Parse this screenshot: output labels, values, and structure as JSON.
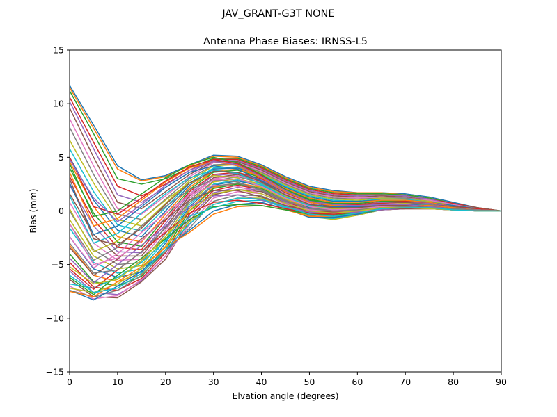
{
  "figure": {
    "suptitle": "JAV_GRANT-G3T   NONE"
  },
  "chart_data": {
    "type": "line",
    "title": "Antenna Phase Biases: IRNSS-L5",
    "xlabel": "Elvation angle (degrees)",
    "ylabel": "Bias (mm)",
    "xlim": [
      0,
      90
    ],
    "ylim": [
      -15,
      15
    ],
    "xticks": [
      "0",
      "10",
      "20",
      "30",
      "40",
      "50",
      "60",
      "70",
      "80",
      "90"
    ],
    "yticks": [
      "−15",
      "−10",
      "−5",
      "0",
      "5",
      "10",
      "15"
    ],
    "grid": false,
    "legend": "none",
    "colors": [
      "#1f77b4",
      "#ff7f0e",
      "#2ca02c",
      "#d62728",
      "#9467bd",
      "#8c564b",
      "#e377c2",
      "#7f7f7f",
      "#bcbd22",
      "#17becf"
    ],
    "x": [
      0,
      5,
      10,
      15,
      20,
      25,
      30,
      35,
      40,
      45,
      50,
      55,
      60,
      65,
      70,
      75,
      80,
      85,
      90
    ],
    "series": [
      {
        "values": [
          11.7,
          8.0,
          4.2,
          2.9,
          3.3,
          4.3,
          5.2,
          5.1,
          4.3,
          3.2,
          2.3,
          1.9,
          1.7,
          1.7,
          1.6,
          1.3,
          0.8,
          0.3,
          0.0
        ]
      },
      {
        "values": [
          11.5,
          7.7,
          3.9,
          2.8,
          3.2,
          4.2,
          5.1,
          5.0,
          4.2,
          3.1,
          2.2,
          1.8,
          1.7,
          1.7,
          1.5,
          1.2,
          0.7,
          0.3,
          0.0
        ]
      },
      {
        "values": [
          11.2,
          7.2,
          3.0,
          2.5,
          3.0,
          4.0,
          4.9,
          4.9,
          4.1,
          3.0,
          2.1,
          1.7,
          1.6,
          1.6,
          1.5,
          1.2,
          0.7,
          0.3,
          0.0
        ]
      },
      {
        "values": [
          10.6,
          6.4,
          2.3,
          1.4,
          2.5,
          3.8,
          4.8,
          4.8,
          4.0,
          2.9,
          2.0,
          1.6,
          1.5,
          1.5,
          1.4,
          1.1,
          0.7,
          0.3,
          0.0
        ]
      },
      {
        "values": [
          10.2,
          5.8,
          1.5,
          0.8,
          2.2,
          3.6,
          4.7,
          4.7,
          3.9,
          2.8,
          1.9,
          1.5,
          1.4,
          1.5,
          1.4,
          1.1,
          0.6,
          0.3,
          0.0
        ]
      },
      {
        "values": [
          9.6,
          5.0,
          0.8,
          0.2,
          1.8,
          3.4,
          4.6,
          4.6,
          3.8,
          2.7,
          1.8,
          1.4,
          1.3,
          1.4,
          1.3,
          1.0,
          0.6,
          0.3,
          0.0
        ]
      },
      {
        "values": [
          8.6,
          4.2,
          0.2,
          -0.3,
          1.4,
          3.2,
          4.5,
          4.5,
          3.7,
          2.6,
          1.7,
          1.3,
          1.2,
          1.3,
          1.2,
          1.0,
          0.6,
          0.2,
          0.0
        ]
      },
      {
        "values": [
          7.8,
          3.4,
          -0.3,
          -0.8,
          1.1,
          3.0,
          4.3,
          4.4,
          3.6,
          2.5,
          1.6,
          1.2,
          1.1,
          1.2,
          1.2,
          0.9,
          0.5,
          0.2,
          0.0
        ]
      },
      {
        "values": [
          6.6,
          2.6,
          -0.8,
          -1.4,
          0.7,
          2.8,
          4.2,
          4.3,
          3.5,
          2.4,
          1.5,
          1.1,
          1.0,
          1.2,
          1.1,
          0.9,
          0.5,
          0.2,
          0.0
        ]
      },
      {
        "values": [
          5.8,
          1.8,
          -1.3,
          -1.9,
          0.3,
          2.6,
          4.0,
          4.1,
          3.4,
          2.3,
          1.4,
          1.0,
          0.9,
          1.1,
          1.1,
          0.8,
          0.5,
          0.2,
          0.0
        ]
      },
      {
        "values": [
          5.0,
          1.0,
          -1.8,
          -2.4,
          0.0,
          2.4,
          3.9,
          4.0,
          3.3,
          2.2,
          1.3,
          0.9,
          0.9,
          1.0,
          1.0,
          0.8,
          0.5,
          0.2,
          0.0
        ]
      },
      {
        "values": [
          4.6,
          0.4,
          -2.4,
          -2.9,
          -0.3,
          2.2,
          3.7,
          3.9,
          3.2,
          2.1,
          1.2,
          0.8,
          0.8,
          1.0,
          1.0,
          0.8,
          0.4,
          0.2,
          0.0
        ]
      },
      {
        "values": [
          4.0,
          -0.2,
          -2.9,
          -3.3,
          -0.6,
          2.0,
          3.6,
          3.8,
          3.1,
          2.0,
          1.1,
          0.7,
          0.7,
          0.9,
          0.9,
          0.7,
          0.4,
          0.2,
          0.0
        ]
      },
      {
        "values": [
          3.2,
          -0.8,
          -3.4,
          -3.6,
          -0.9,
          1.8,
          3.4,
          3.6,
          3.0,
          1.9,
          1.0,
          0.6,
          0.6,
          0.8,
          0.9,
          0.7,
          0.4,
          0.2,
          0.0
        ]
      },
      {
        "values": [
          2.4,
          -1.4,
          -3.8,
          -3.9,
          -1.2,
          1.6,
          3.3,
          3.5,
          2.9,
          1.8,
          0.9,
          0.5,
          0.5,
          0.8,
          0.8,
          0.7,
          0.4,
          0.1,
          0.0
        ]
      },
      {
        "values": [
          1.6,
          -2.2,
          -4.2,
          -4.2,
          -1.5,
          1.4,
          3.1,
          3.4,
          2.8,
          1.7,
          0.8,
          0.4,
          0.5,
          0.7,
          0.8,
          0.6,
          0.4,
          0.1,
          0.0
        ]
      },
      {
        "values": [
          0.8,
          -3.0,
          -4.6,
          -4.5,
          -1.8,
          1.2,
          3.0,
          3.3,
          2.7,
          1.6,
          0.7,
          0.3,
          0.4,
          0.7,
          0.7,
          0.6,
          0.3,
          0.1,
          0.0
        ]
      },
      {
        "values": [
          0.0,
          -3.6,
          -5.0,
          -4.8,
          -2.1,
          1.0,
          2.8,
          3.2,
          2.6,
          1.5,
          0.6,
          0.3,
          0.3,
          0.6,
          0.7,
          0.6,
          0.3,
          0.1,
          0.0
        ]
      },
      {
        "values": [
          -0.8,
          -4.2,
          -5.4,
          -5.1,
          -2.4,
          0.8,
          2.7,
          3.0,
          2.5,
          1.4,
          0.5,
          0.2,
          0.3,
          0.6,
          0.7,
          0.5,
          0.3,
          0.1,
          0.0
        ]
      },
      {
        "values": [
          -1.6,
          -4.8,
          -5.8,
          -5.4,
          -2.7,
          0.6,
          2.5,
          2.9,
          2.4,
          1.3,
          0.4,
          0.1,
          0.2,
          0.5,
          0.6,
          0.5,
          0.3,
          0.1,
          0.0
        ]
      },
      {
        "values": [
          -2.4,
          -5.4,
          -6.2,
          -5.7,
          -3.0,
          0.4,
          2.4,
          2.8,
          2.3,
          1.2,
          0.3,
          0.0,
          0.1,
          0.5,
          0.6,
          0.5,
          0.3,
          0.1,
          0.0
        ]
      },
      {
        "values": [
          -3.2,
          -6.0,
          -6.6,
          -5.9,
          -3.3,
          0.2,
          2.2,
          2.6,
          2.2,
          1.1,
          0.2,
          -0.1,
          0.1,
          0.4,
          0.5,
          0.5,
          0.3,
          0.1,
          0.0
        ]
      },
      {
        "values": [
          -4.0,
          -6.6,
          -7.0,
          -6.1,
          -3.6,
          0.0,
          2.1,
          2.5,
          2.1,
          1.0,
          0.1,
          -0.2,
          0.0,
          0.4,
          0.5,
          0.4,
          0.2,
          0.1,
          0.0
        ]
      },
      {
        "values": [
          -4.8,
          -7.1,
          -7.4,
          -6.3,
          -3.9,
          -0.3,
          1.9,
          2.4,
          2.0,
          0.9,
          0.0,
          -0.3,
          -0.1,
          0.3,
          0.5,
          0.4,
          0.2,
          0.1,
          0.0
        ]
      },
      {
        "values": [
          -5.6,
          -7.6,
          -7.8,
          -6.5,
          -4.2,
          -0.6,
          1.7,
          2.2,
          1.9,
          0.8,
          -0.1,
          -0.4,
          -0.2,
          0.3,
          0.4,
          0.4,
          0.2,
          0.1,
          0.0
        ]
      },
      {
        "values": [
          -6.4,
          -8.0,
          -8.1,
          -6.6,
          -4.5,
          -0.9,
          1.5,
          2.0,
          1.8,
          0.7,
          -0.2,
          -0.5,
          -0.3,
          0.2,
          0.4,
          0.4,
          0.2,
          0.1,
          0.0
        ]
      },
      {
        "values": [
          -7.0,
          -8.2,
          -7.9,
          -6.4,
          -4.2,
          -1.3,
          1.2,
          1.8,
          1.6,
          0.6,
          -0.3,
          -0.6,
          -0.3,
          0.2,
          0.4,
          0.4,
          0.2,
          0.1,
          0.0
        ]
      },
      {
        "values": [
          -7.4,
          -8.0,
          -7.4,
          -6.0,
          -3.8,
          -1.6,
          0.9,
          1.5,
          1.4,
          0.5,
          -0.4,
          -0.7,
          -0.4,
          0.1,
          0.3,
          0.3,
          0.2,
          0.1,
          0.0
        ]
      },
      {
        "values": [
          -7.2,
          -7.6,
          -6.8,
          -5.4,
          -3.3,
          -1.0,
          0.6,
          1.2,
          1.2,
          0.4,
          -0.5,
          -0.8,
          -0.4,
          0.1,
          0.3,
          0.3,
          0.2,
          0.1,
          0.0
        ]
      },
      {
        "values": [
          -6.8,
          -7.2,
          -6.2,
          -4.8,
          -2.8,
          -0.5,
          0.3,
          0.9,
          1.0,
          0.3,
          -0.6,
          -0.7,
          -0.3,
          0.1,
          0.3,
          0.3,
          0.2,
          0.1,
          0.0
        ]
      },
      {
        "values": [
          -7.4,
          -8.3,
          -7.0,
          -5.6,
          -3.6,
          -1.8,
          0.0,
          0.6,
          0.8,
          0.2,
          -0.6,
          -0.6,
          -0.3,
          0.1,
          0.3,
          0.3,
          0.1,
          0.0,
          0.0
        ]
      },
      {
        "values": [
          -7.5,
          -8.0,
          -6.6,
          -5.2,
          -3.4,
          -2.0,
          -0.3,
          0.4,
          0.5,
          0.1,
          -0.5,
          -0.5,
          -0.2,
          0.1,
          0.2,
          0.2,
          0.1,
          0.0,
          0.0
        ]
      },
      {
        "values": [
          -6.2,
          -7.8,
          -6.0,
          -4.4,
          -2.6,
          -0.8,
          0.4,
          0.6,
          0.5,
          0.1,
          -0.3,
          -0.4,
          -0.2,
          0.1,
          0.2,
          0.2,
          0.1,
          0.0,
          0.0
        ]
      },
      {
        "values": [
          -5.4,
          -7.3,
          -5.5,
          -3.8,
          -2.0,
          -0.2,
          0.8,
          1.0,
          0.7,
          0.2,
          -0.2,
          -0.3,
          -0.1,
          0.1,
          0.2,
          0.2,
          0.1,
          0.0,
          0.0
        ]
      },
      {
        "values": [
          -4.4,
          -6.7,
          -5.0,
          -3.2,
          -1.4,
          0.4,
          1.4,
          1.5,
          1.0,
          0.4,
          -0.1,
          -0.2,
          -0.1,
          0.1,
          0.2,
          0.2,
          0.1,
          0.0,
          0.0
        ]
      },
      {
        "values": [
          -3.4,
          -6.0,
          -4.5,
          -2.6,
          -0.8,
          1.0,
          1.9,
          1.9,
          1.3,
          0.5,
          0.0,
          -0.1,
          0.0,
          0.2,
          0.2,
          0.2,
          0.1,
          0.0,
          0.0
        ]
      },
      {
        "values": [
          -2.4,
          -5.3,
          -4.0,
          -2.0,
          -0.2,
          1.5,
          2.4,
          2.3,
          1.6,
          0.7,
          0.1,
          0.0,
          0.0,
          0.2,
          0.3,
          0.2,
          0.1,
          0.0,
          0.0
        ]
      },
      {
        "values": [
          -1.2,
          -4.6,
          -3.4,
          -1.4,
          0.4,
          2.0,
          2.9,
          2.7,
          1.9,
          0.9,
          0.2,
          0.1,
          0.1,
          0.2,
          0.3,
          0.2,
          0.1,
          0.0,
          0.0
        ]
      },
      {
        "values": [
          0.2,
          -3.8,
          -2.8,
          -0.8,
          1.0,
          2.6,
          3.3,
          3.1,
          2.2,
          1.1,
          0.4,
          0.2,
          0.2,
          0.3,
          0.3,
          0.2,
          0.1,
          0.0,
          0.0
        ]
      },
      {
        "values": [
          1.4,
          -3.0,
          -2.1,
          -0.2,
          1.6,
          3.1,
          3.8,
          3.5,
          2.5,
          1.3,
          0.5,
          0.3,
          0.3,
          0.4,
          0.4,
          0.3,
          0.1,
          0.0,
          0.0
        ]
      },
      {
        "values": [
          2.6,
          -2.2,
          -1.4,
          0.4,
          2.2,
          3.6,
          4.2,
          3.9,
          2.8,
          1.5,
          0.6,
          0.4,
          0.4,
          0.5,
          0.5,
          0.3,
          0.2,
          0.1,
          0.0
        ]
      },
      {
        "values": [
          3.6,
          -1.4,
          -0.7,
          1.0,
          2.7,
          4.0,
          4.6,
          4.2,
          3.1,
          1.8,
          0.8,
          0.5,
          0.5,
          0.6,
          0.5,
          0.4,
          0.2,
          0.1,
          0.0
        ]
      },
      {
        "values": [
          4.4,
          -0.5,
          0.0,
          1.6,
          3.1,
          4.3,
          5.0,
          4.5,
          3.4,
          2.0,
          1.0,
          0.7,
          0.6,
          0.7,
          0.6,
          0.4,
          0.2,
          0.1,
          0.0
        ]
      },
      {
        "values": [
          5.0,
          0.4,
          -0.3,
          1.2,
          2.8,
          4.1,
          4.8,
          4.4,
          3.3,
          1.9,
          0.9,
          0.6,
          0.6,
          0.7,
          0.6,
          0.4,
          0.2,
          0.1,
          0.0
        ]
      },
      {
        "values": [
          4.8,
          1.2,
          -1.0,
          0.6,
          2.4,
          3.8,
          4.6,
          4.3,
          3.2,
          1.9,
          0.9,
          0.6,
          0.5,
          0.6,
          0.6,
          0.4,
          0.2,
          0.1,
          0.0
        ]
      },
      {
        "values": [
          3.0,
          -2.6,
          -3.2,
          -1.6,
          0.6,
          2.6,
          3.7,
          3.6,
          2.7,
          1.5,
          0.6,
          0.3,
          0.3,
          0.5,
          0.5,
          0.3,
          0.2,
          0.1,
          0.0
        ]
      },
      {
        "values": [
          -1.2,
          -5.0,
          -4.4,
          -2.8,
          -0.6,
          1.6,
          2.9,
          3.0,
          2.3,
          1.2,
          0.4,
          0.1,
          0.2,
          0.4,
          0.4,
          0.3,
          0.2,
          0.1,
          0.0
        ]
      },
      {
        "values": [
          -3.0,
          -5.8,
          -5.5,
          -3.8,
          -1.6,
          0.8,
          2.3,
          2.6,
          2.0,
          1.0,
          0.2,
          0.0,
          0.1,
          0.3,
          0.4,
          0.3,
          0.2,
          0.1,
          0.0
        ]
      },
      {
        "values": [
          -5.2,
          -6.8,
          -6.4,
          -4.6,
          -2.4,
          0.0,
          1.6,
          2.0,
          1.6,
          0.7,
          0.0,
          -0.2,
          0.0,
          0.3,
          0.3,
          0.3,
          0.1,
          0.0,
          0.0
        ]
      },
      {
        "values": [
          -6.0,
          -7.6,
          -7.2,
          -5.8,
          -3.6,
          -1.2,
          0.6,
          1.2,
          1.1,
          0.4,
          -0.3,
          -0.5,
          -0.2,
          0.2,
          0.3,
          0.3,
          0.1,
          0.0,
          0.0
        ]
      }
    ]
  }
}
